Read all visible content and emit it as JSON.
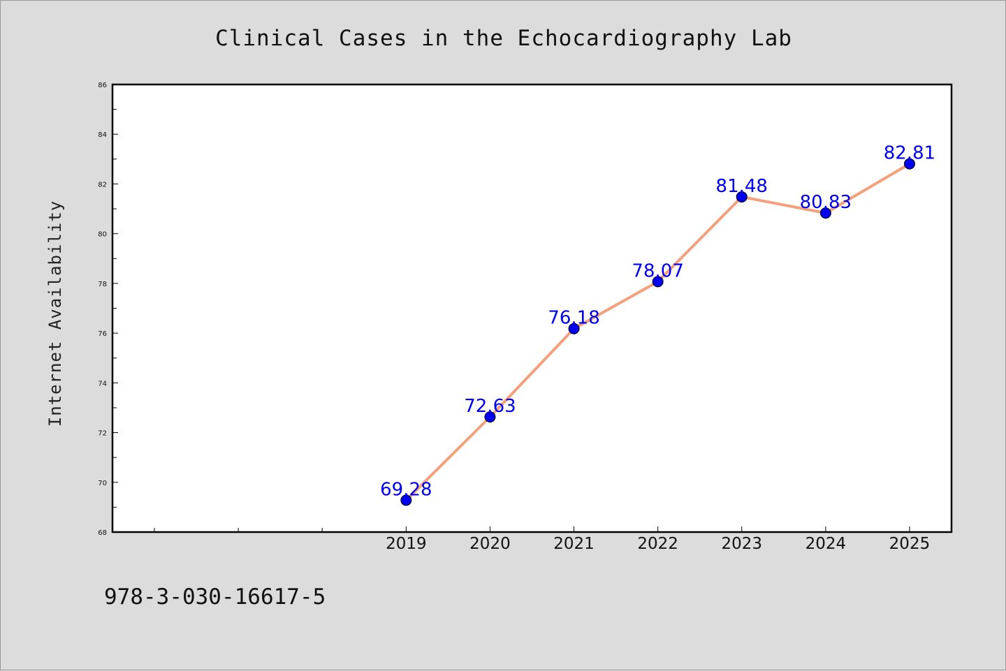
{
  "chart_data": {
    "type": "line",
    "title": "Clinical Cases in the Echocardiography Lab",
    "xlabel": "",
    "ylabel": "Internet Availability",
    "categories": [
      "2019",
      "2020",
      "2021",
      "2022",
      "2023",
      "2024",
      "2025"
    ],
    "values": [
      69.28,
      72.63,
      76.18,
      78.07,
      81.48,
      80.83,
      82.81
    ],
    "value_labels": [
      "69.28",
      "72.63",
      "76.18",
      "78.07",
      "81.48",
      "80.83",
      "82.81"
    ],
    "ylim": [
      68,
      86
    ],
    "yticks": [
      "68",
      "70",
      "72",
      "74",
      "76",
      "78",
      "80",
      "82",
      "84",
      "86"
    ],
    "xlim": [
      2015.5,
      2025.5
    ],
    "grid": false,
    "legend": "none",
    "colors": {
      "line": "#f4a07c",
      "marker": "#0000ee",
      "label": "#0000ee",
      "background": "#dcdcdc",
      "plot": "#ffffff"
    }
  },
  "footer": {
    "isbn": "978-3-030-16617-5"
  }
}
